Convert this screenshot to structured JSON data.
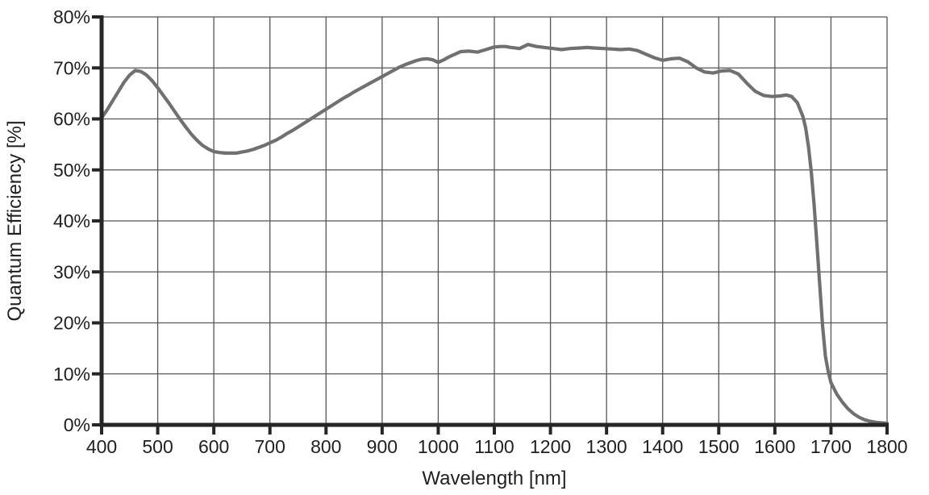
{
  "chart_data": {
    "type": "line",
    "title": "",
    "xlabel": "Wavelength [nm]",
    "ylabel": "Quantum Efficiency [%]",
    "xlim": [
      400,
      1800
    ],
    "ylim": [
      0,
      80
    ],
    "x_ticks": [
      400,
      500,
      600,
      700,
      800,
      900,
      1000,
      1100,
      1200,
      1300,
      1400,
      1500,
      1600,
      1700,
      1800
    ],
    "x_tick_labels": [
      "400",
      "500",
      "600",
      "700",
      "800",
      "900",
      "1000",
      "1100",
      "1200",
      "1300",
      "1400",
      "1500",
      "1600",
      "1700",
      "1800"
    ],
    "y_ticks": [
      0,
      10,
      20,
      30,
      40,
      50,
      60,
      70,
      80
    ],
    "y_tick_labels": [
      "0%",
      "10%",
      "20%",
      "30%",
      "40%",
      "50%",
      "60%",
      "70%",
      "80%"
    ],
    "grid": true,
    "legend": "none",
    "series": [
      {
        "name": "Quantum Efficiency",
        "color": "#707070",
        "points": [
          [
            400,
            60.2
          ],
          [
            410,
            61.8
          ],
          [
            420,
            63.6
          ],
          [
            430,
            65.4
          ],
          [
            440,
            67.2
          ],
          [
            450,
            68.6
          ],
          [
            460,
            69.5
          ],
          [
            470,
            69.3
          ],
          [
            480,
            68.6
          ],
          [
            490,
            67.5
          ],
          [
            500,
            66.1
          ],
          [
            510,
            64.6
          ],
          [
            520,
            63.1
          ],
          [
            530,
            61.5
          ],
          [
            540,
            59.9
          ],
          [
            550,
            58.4
          ],
          [
            560,
            57.0
          ],
          [
            570,
            55.8
          ],
          [
            580,
            54.8
          ],
          [
            590,
            54.1
          ],
          [
            600,
            53.6
          ],
          [
            610,
            53.4
          ],
          [
            620,
            53.3
          ],
          [
            630,
            53.3
          ],
          [
            640,
            53.3
          ],
          [
            650,
            53.5
          ],
          [
            660,
            53.7
          ],
          [
            670,
            54.0
          ],
          [
            680,
            54.4
          ],
          [
            690,
            54.8
          ],
          [
            700,
            55.3
          ],
          [
            710,
            55.8
          ],
          [
            720,
            56.4
          ],
          [
            730,
            57.1
          ],
          [
            740,
            57.7
          ],
          [
            750,
            58.4
          ],
          [
            760,
            59.1
          ],
          [
            770,
            59.8
          ],
          [
            780,
            60.5
          ],
          [
            790,
            61.2
          ],
          [
            800,
            61.9
          ],
          [
            810,
            62.6
          ],
          [
            820,
            63.3
          ],
          [
            830,
            64.0
          ],
          [
            840,
            64.6
          ],
          [
            850,
            65.3
          ],
          [
            860,
            65.9
          ],
          [
            870,
            66.5
          ],
          [
            880,
            67.1
          ],
          [
            890,
            67.7
          ],
          [
            900,
            68.3
          ],
          [
            910,
            68.9
          ],
          [
            920,
            69.5
          ],
          [
            930,
            70.1
          ],
          [
            940,
            70.6
          ],
          [
            950,
            71.0
          ],
          [
            960,
            71.4
          ],
          [
            970,
            71.7
          ],
          [
            980,
            71.8
          ],
          [
            990,
            71.6
          ],
          [
            1000,
            71.1
          ],
          [
            1010,
            71.6
          ],
          [
            1020,
            72.2
          ],
          [
            1030,
            72.7
          ],
          [
            1040,
            73.2
          ],
          [
            1055,
            73.3
          ],
          [
            1070,
            73.1
          ],
          [
            1085,
            73.6
          ],
          [
            1100,
            74.1
          ],
          [
            1110,
            74.2
          ],
          [
            1120,
            74.2
          ],
          [
            1130,
            74.0
          ],
          [
            1145,
            73.8
          ],
          [
            1160,
            74.6
          ],
          [
            1175,
            74.2
          ],
          [
            1190,
            74.0
          ],
          [
            1205,
            73.8
          ],
          [
            1220,
            73.6
          ],
          [
            1235,
            73.8
          ],
          [
            1250,
            73.9
          ],
          [
            1265,
            74.0
          ],
          [
            1280,
            73.9
          ],
          [
            1295,
            73.8
          ],
          [
            1310,
            73.7
          ],
          [
            1325,
            73.6
          ],
          [
            1340,
            73.7
          ],
          [
            1355,
            73.4
          ],
          [
            1370,
            72.7
          ],
          [
            1385,
            72.0
          ],
          [
            1400,
            71.5
          ],
          [
            1415,
            71.8
          ],
          [
            1430,
            71.9
          ],
          [
            1445,
            71.2
          ],
          [
            1460,
            70.0
          ],
          [
            1475,
            69.2
          ],
          [
            1490,
            69.0
          ],
          [
            1505,
            69.4
          ],
          [
            1520,
            69.5
          ],
          [
            1535,
            68.8
          ],
          [
            1550,
            67.0
          ],
          [
            1565,
            65.4
          ],
          [
            1580,
            64.6
          ],
          [
            1595,
            64.4
          ],
          [
            1610,
            64.5
          ],
          [
            1620,
            64.7
          ],
          [
            1630,
            64.4
          ],
          [
            1640,
            63.2
          ],
          [
            1650,
            60.5
          ],
          [
            1655,
            58.2
          ],
          [
            1660,
            54.5
          ],
          [
            1665,
            49.5
          ],
          [
            1670,
            43.0
          ],
          [
            1675,
            35.5
          ],
          [
            1680,
            27.5
          ],
          [
            1685,
            19.5
          ],
          [
            1690,
            13.5
          ],
          [
            1695,
            10.5
          ],
          [
            1700,
            8.3
          ],
          [
            1710,
            6.1
          ],
          [
            1720,
            4.5
          ],
          [
            1730,
            3.2
          ],
          [
            1740,
            2.2
          ],
          [
            1750,
            1.5
          ],
          [
            1760,
            1.0
          ],
          [
            1770,
            0.7
          ],
          [
            1780,
            0.5
          ],
          [
            1790,
            0.4
          ],
          [
            1800,
            0.3
          ]
        ]
      }
    ]
  },
  "colors": {
    "background": "#ffffff",
    "line": "#707070",
    "grid": "#555555",
    "axis": "#262626",
    "text": "#1f1f1f"
  }
}
